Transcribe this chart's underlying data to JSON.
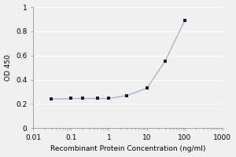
{
  "x": [
    0.03,
    0.1,
    0.2,
    0.5,
    1,
    3,
    10,
    30,
    100
  ],
  "y": [
    0.24,
    0.245,
    0.245,
    0.245,
    0.245,
    0.27,
    0.33,
    0.55,
    0.89
  ],
  "line_color": "#a8b4cc",
  "marker_color": "#1a1a2a",
  "marker": "s",
  "marker_size": 2.5,
  "xlabel": "Recombinant Protein Concentration (ng/ml)",
  "ylabel": "OD 450",
  "xlim": [
    0.01,
    1000
  ],
  "ylim": [
    0,
    1.0
  ],
  "yticks": [
    0,
    0.2,
    0.4,
    0.6,
    0.8,
    1
  ],
  "ytick_labels": [
    "0",
    "0.2",
    "0.4",
    "0.6",
    "0.8",
    "1"
  ],
  "xtick_vals": [
    0.01,
    0.1,
    1,
    10,
    100,
    1000
  ],
  "xtick_labels": [
    "0.01",
    "0.1",
    "1",
    "10",
    "100",
    "1000"
  ],
  "background_color": "#f0f0f0",
  "plot_bg_color": "#f0f0f0",
  "grid_color": "#ffffff",
  "xlabel_fontsize": 6.5,
  "ylabel_fontsize": 6.5,
  "tick_fontsize": 6.5,
  "line_width": 1.0
}
